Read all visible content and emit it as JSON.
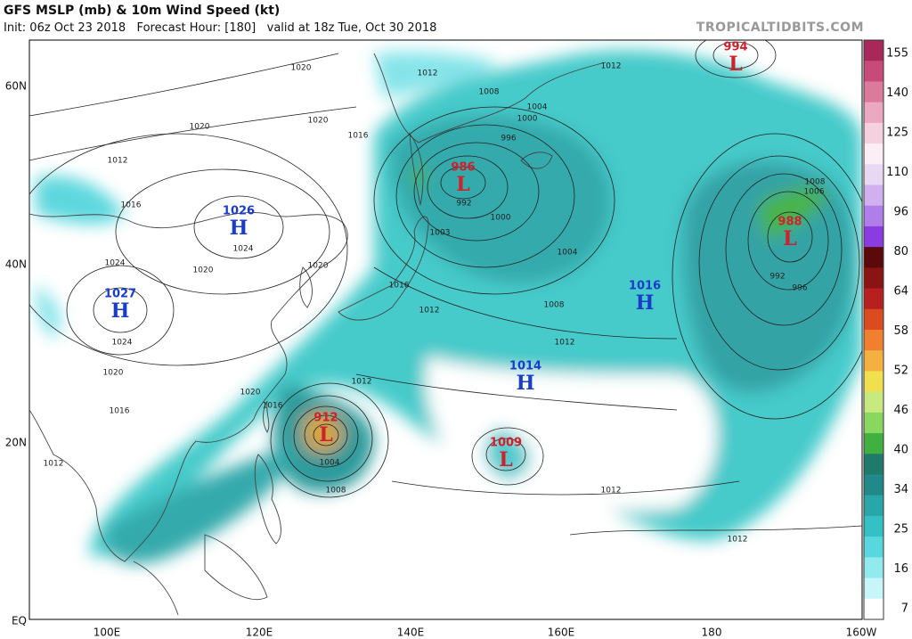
{
  "header": {
    "title": "GFS MSLP (mb) & 10m Wind Speed (kt)",
    "subtitle": "Init: 06z Oct 23 2018   Forecast Hour: [180]   valid at 18z Tue, Oct 30 2018",
    "source": "TROPICALTIDBITS.COM"
  },
  "axes": {
    "lat_labels": [
      "60N",
      "40N",
      "20N",
      "EQ"
    ],
    "lon_labels": [
      "100E",
      "120E",
      "140E",
      "160E",
      "180",
      "160W"
    ]
  },
  "colorbar": {
    "labels": [
      155,
      140,
      125,
      110,
      96,
      80,
      64,
      58,
      52,
      46,
      40,
      34,
      25,
      16,
      7
    ]
  },
  "systems": [
    {
      "kind": "L",
      "pressure": 994
    },
    {
      "kind": "L",
      "pressure": 986
    },
    {
      "kind": "H",
      "pressure": 1026
    },
    {
      "kind": "H",
      "pressure": 1027
    },
    {
      "kind": "L",
      "pressure": 988
    },
    {
      "kind": "H",
      "pressure": 1016
    },
    {
      "kind": "H",
      "pressure": 1014
    },
    {
      "kind": "L",
      "pressure": 912
    },
    {
      "kind": "L",
      "pressure": 1009
    }
  ],
  "isobar_labels": [
    1020,
    1012,
    1012,
    1008,
    1004,
    1000,
    996,
    1020,
    1016,
    1020,
    1012,
    1016,
    992,
    1003,
    1000,
    1004,
    1024,
    1024,
    1020,
    1020,
    1016,
    1012,
    1008,
    1012,
    1012,
    1020,
    1016,
    1016,
    1012,
    1004,
    1008,
    1012,
    1012,
    992,
    996,
    1008,
    1006,
    1024,
    1020
  ]
}
